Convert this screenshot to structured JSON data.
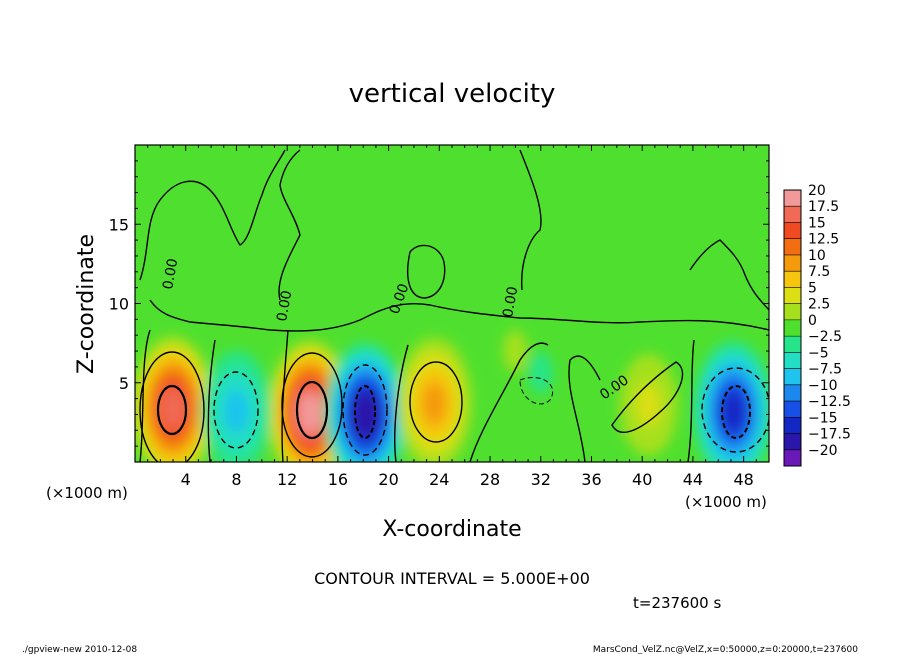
{
  "chart_data": {
    "type": "heatmap",
    "title": "vertical velocity",
    "xlabel": "X-coordinate",
    "ylabel": "Z-coordinate",
    "x_unit_label": "(×1000 m)",
    "y_unit_label": "(×1000 m)",
    "xlim": [
      0,
      50
    ],
    "ylim": [
      0,
      20
    ],
    "x_ticks": [
      4,
      8,
      12,
      16,
      20,
      24,
      28,
      32,
      36,
      40,
      44,
      48
    ],
    "y_ticks": [
      5,
      10,
      15
    ],
    "contour_interval_text": "CONTOUR INTERVAL = 5.000E+00",
    "contour_labels": [
      "0.00",
      "0.00",
      "0.00",
      "0.00",
      "0.00"
    ],
    "time_text": "t=237600 s",
    "colorbar": {
      "levels": [
        "20",
        "17.5",
        "15",
        "12.5",
        "10",
        "7.5",
        "5",
        "2.5",
        "0",
        "-2.5",
        "-5",
        "-7.5",
        "-10",
        "-12.5",
        "-15",
        "-17.5",
        "-20"
      ],
      "colors": [
        "#f29a9a",
        "#f06a55",
        "#ef4a22",
        "#f26e10",
        "#f59a0a",
        "#f6c50e",
        "#dcdf14",
        "#a6e01c",
        "#4fe02f",
        "#27e48a",
        "#22dec5",
        "#1ec3ee",
        "#1a88ee",
        "#1650e6",
        "#1228c4",
        "#2a16a8",
        "#6a18b6"
      ]
    },
    "cells": [
      {
        "x": 3,
        "z": 3.4,
        "w": 0.93
      },
      {
        "x": 13.8,
        "z": 3.1,
        "w": 0.97
      },
      {
        "x": 8,
        "z": 3.2,
        "w": -0.42
      },
      {
        "x": 18.2,
        "z": 3.0,
        "w": -0.9
      },
      {
        "x": 23.6,
        "z": 3.7,
        "w": 0.45
      },
      {
        "x": 40.5,
        "z": 3.6,
        "w": 0.3
      },
      {
        "x": 47.2,
        "z": 3.2,
        "w": -0.72
      },
      {
        "x": 32.0,
        "z": 5.6,
        "w": -0.12
      },
      {
        "x": 30.0,
        "z": 7.0,
        "w": 0.12
      }
    ]
  },
  "footer": {
    "left": "./gpview-new 2010-12-08",
    "right": "MarsCond_VelZ.nc@VelZ,x=0:50000,z=0:20000,t=237600"
  }
}
